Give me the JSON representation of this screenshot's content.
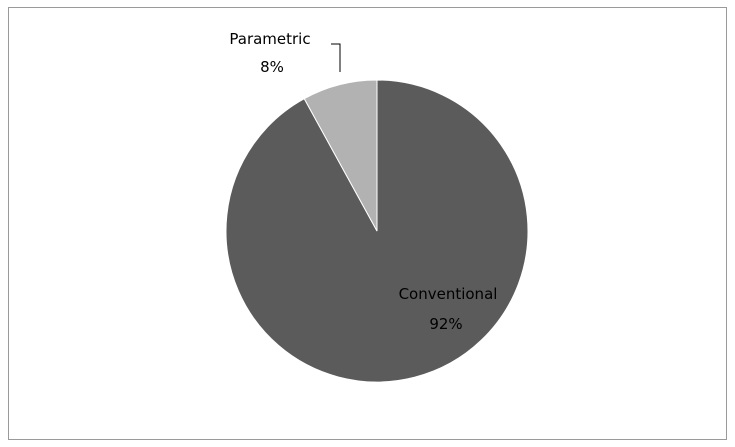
{
  "chart_data": {
    "type": "pie",
    "title": "",
    "slices": [
      {
        "label": "Conventional",
        "percent_label": "92%",
        "value": 92,
        "color": "#5b5b5b"
      },
      {
        "label": "Parametric",
        "percent_label": "8%",
        "value": 8,
        "color": "#b2b2b2"
      }
    ],
    "start": "top",
    "direction": "clockwise",
    "legend": "none"
  }
}
